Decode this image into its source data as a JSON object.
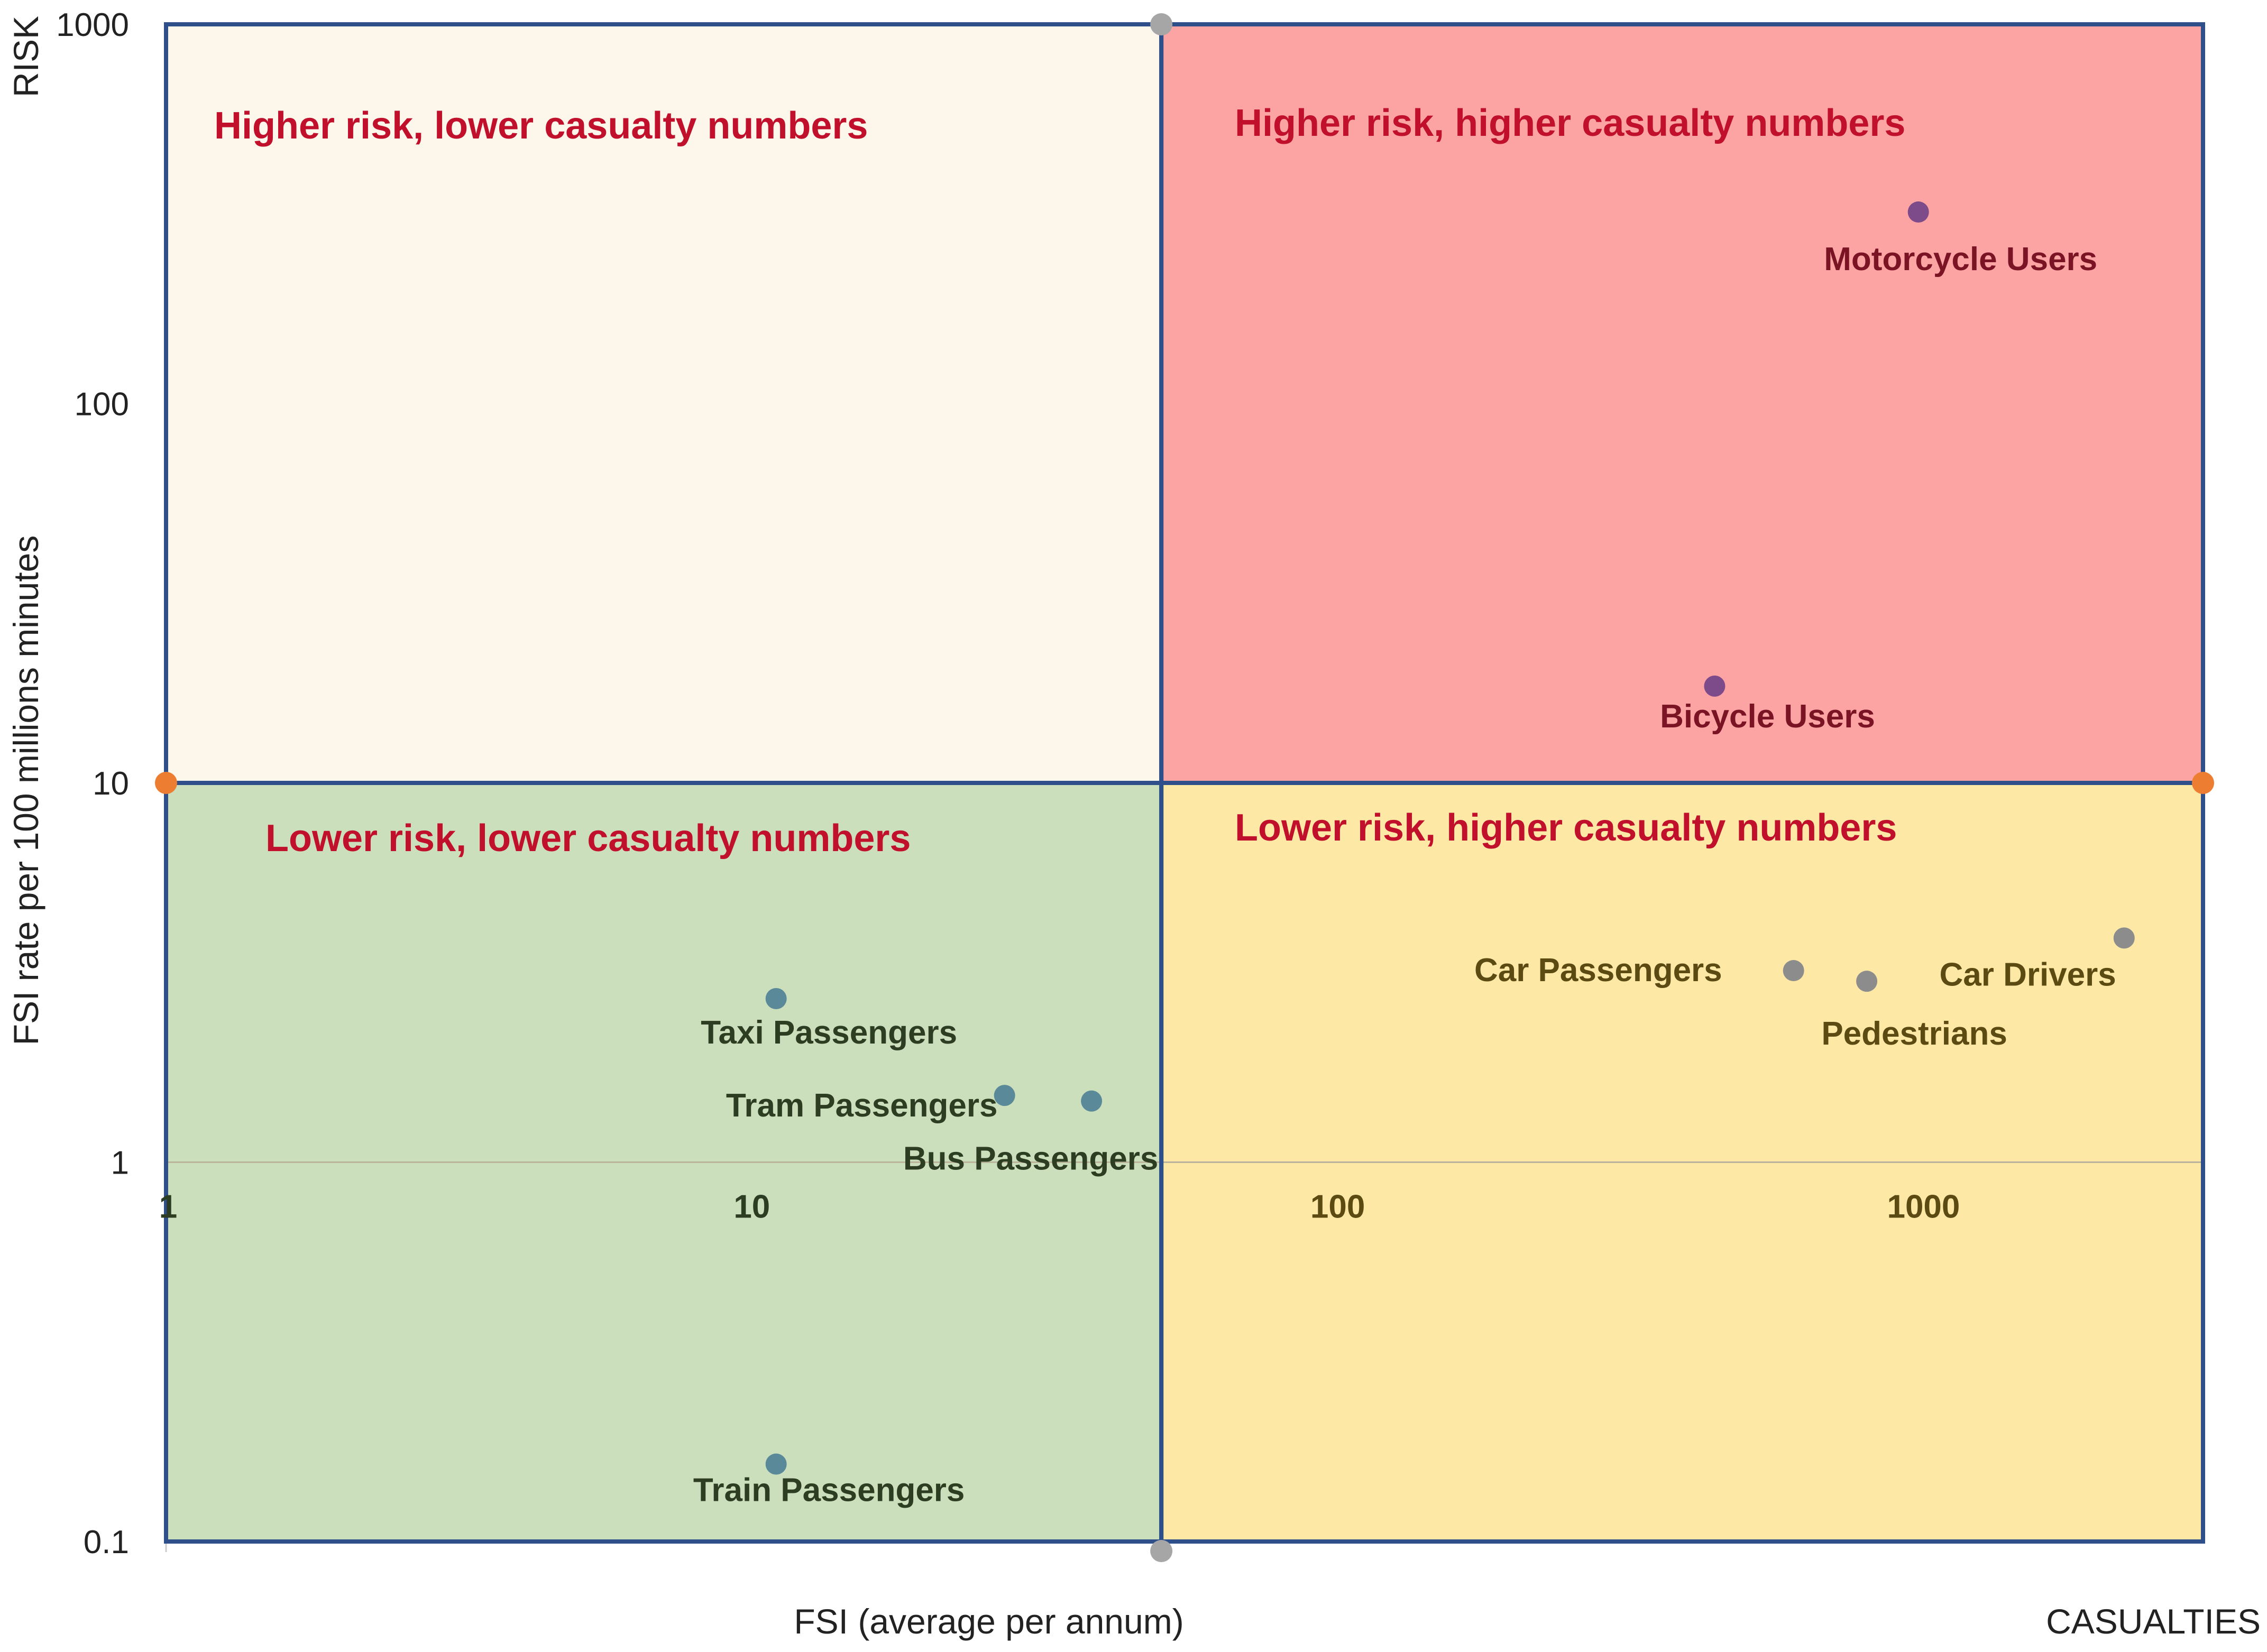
{
  "chart_data": {
    "type": "scatter",
    "title": "",
    "xlabel": "FSI (average per annum)",
    "x_corner_label": "CASUALTIES",
    "ylabel": "FSI rate per 100 millions  minutes",
    "y_corner_label": "RISK",
    "xscale": "log",
    "yscale": "log",
    "xlim": [
      1,
      3000
    ],
    "ylim": [
      0.1,
      1000
    ],
    "x_ticks": [
      "1",
      "10",
      "100",
      "1000"
    ],
    "y_ticks": [
      "0.1",
      "1",
      "10",
      "100",
      "1000"
    ],
    "x_divider": 50,
    "y_divider": 10,
    "quadrants": [
      {
        "label": "Higher risk, lower casualty numbers",
        "position": "top-left",
        "color": "#fdf6ea"
      },
      {
        "label": "Higher risk, higher casualty numbers",
        "position": "top-right",
        "color": "#fca4a4"
      },
      {
        "label": "Lower risk, lower casualty numbers",
        "position": "bottom-left",
        "color": "#ccdfbc"
      },
      {
        "label": "Lower risk, higher casualty numbers",
        "position": "bottom-right",
        "color": "#fde8a6"
      }
    ],
    "points": [
      {
        "name": "Motorcycle Users",
        "x": 980,
        "y": 320,
        "color": "#7d4a8a",
        "label_color": "#7a1424"
      },
      {
        "name": "Bicycle Users",
        "x": 440,
        "y": 18,
        "color": "#7d4a8a",
        "label_color": "#7a1424"
      },
      {
        "name": "Car Passengers",
        "x": 600,
        "y": 3.2,
        "color": "#8c8c8c",
        "label_color": "#5b4a12"
      },
      {
        "name": "Pedestrians",
        "x": 800,
        "y": 3.0,
        "color": "#8c8c8c",
        "label_color": "#5b4a12"
      },
      {
        "name": "Car Drivers",
        "x": 2200,
        "y": 3.9,
        "color": "#8c8c8c",
        "label_color": "#5b4a12"
      },
      {
        "name": "Taxi Passengers",
        "x": 11,
        "y": 2.7,
        "color": "#5a8a9a",
        "label_color": "#2c3d22"
      },
      {
        "name": "Tram Passengers",
        "x": 27,
        "y": 1.5,
        "color": "#5a8a9a",
        "label_color": "#2c3d22"
      },
      {
        "name": "Bus Passengers",
        "x": 38,
        "y": 1.45,
        "color": "#5a8a9a",
        "label_color": "#2c3d22"
      },
      {
        "name": "Train Passengers",
        "x": 11,
        "y": 0.16,
        "color": "#5a8a9a",
        "label_color": "#2c3d22"
      }
    ],
    "colors": {
      "frame": "#2f4f8a",
      "x_tick_left": "#2c3d22",
      "x_tick_right": "#5b4a12",
      "divider_dot_gray": "#a6a6a6",
      "divider_dot_orange": "#ed7d31"
    }
  }
}
